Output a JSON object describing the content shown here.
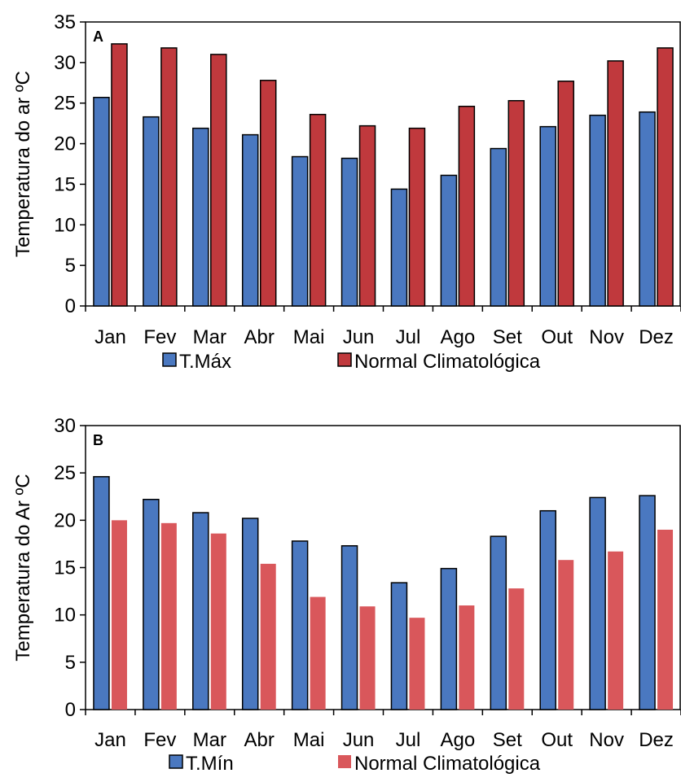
{
  "chart_data": [
    {
      "type": "bar",
      "panel_label": "A",
      "ylabel": "Temperatura do ar ºC",
      "ylim": [
        0,
        35
      ],
      "yticks": [
        0,
        5,
        10,
        15,
        20,
        25,
        30,
        35
      ],
      "categories": [
        "Jan",
        "Fev",
        "Mar",
        "Abr",
        "Mai",
        "Jun",
        "Jul",
        "Ago",
        "Set",
        "Out",
        "Nov",
        "Dez"
      ],
      "series": [
        {
          "name": "T.Máx",
          "color": "#4a78c0",
          "stroke": "#000000",
          "values": [
            25.7,
            23.3,
            21.9,
            21.1,
            18.4,
            18.2,
            14.4,
            16.1,
            19.4,
            22.1,
            23.5,
            23.9
          ]
        },
        {
          "name": "Normal Climatológica",
          "color": "#c0393d",
          "stroke": "#000000",
          "values": [
            32.3,
            31.8,
            31.0,
            27.8,
            23.6,
            22.2,
            21.9,
            24.6,
            25.3,
            27.7,
            30.2,
            31.8
          ]
        }
      ],
      "legend_position": "bottom",
      "grid": false
    },
    {
      "type": "bar",
      "panel_label": "B",
      "ylabel": "Temperatura do Ar ºC",
      "ylim": [
        0,
        30
      ],
      "yticks": [
        0,
        5,
        10,
        15,
        20,
        25,
        30
      ],
      "categories": [
        "Jan",
        "Fev",
        "Mar",
        "Abr",
        "Mai",
        "Jun",
        "Jul",
        "Ago",
        "Set",
        "Out",
        "Nov",
        "Dez"
      ],
      "series": [
        {
          "name": "T.Mín",
          "color": "#4a78c0",
          "stroke": "#000000",
          "values": [
            24.6,
            22.2,
            20.8,
            20.2,
            17.8,
            17.3,
            13.4,
            14.9,
            18.3,
            21.0,
            22.4,
            22.6
          ]
        },
        {
          "name": "Normal Climatológica",
          "color": "#d9575b",
          "stroke": "none",
          "values": [
            20.0,
            19.7,
            18.6,
            15.4,
            11.9,
            10.9,
            9.7,
            11.0,
            12.8,
            15.8,
            16.7,
            19.0
          ]
        }
      ],
      "legend_position": "bottom",
      "grid": false
    }
  ]
}
